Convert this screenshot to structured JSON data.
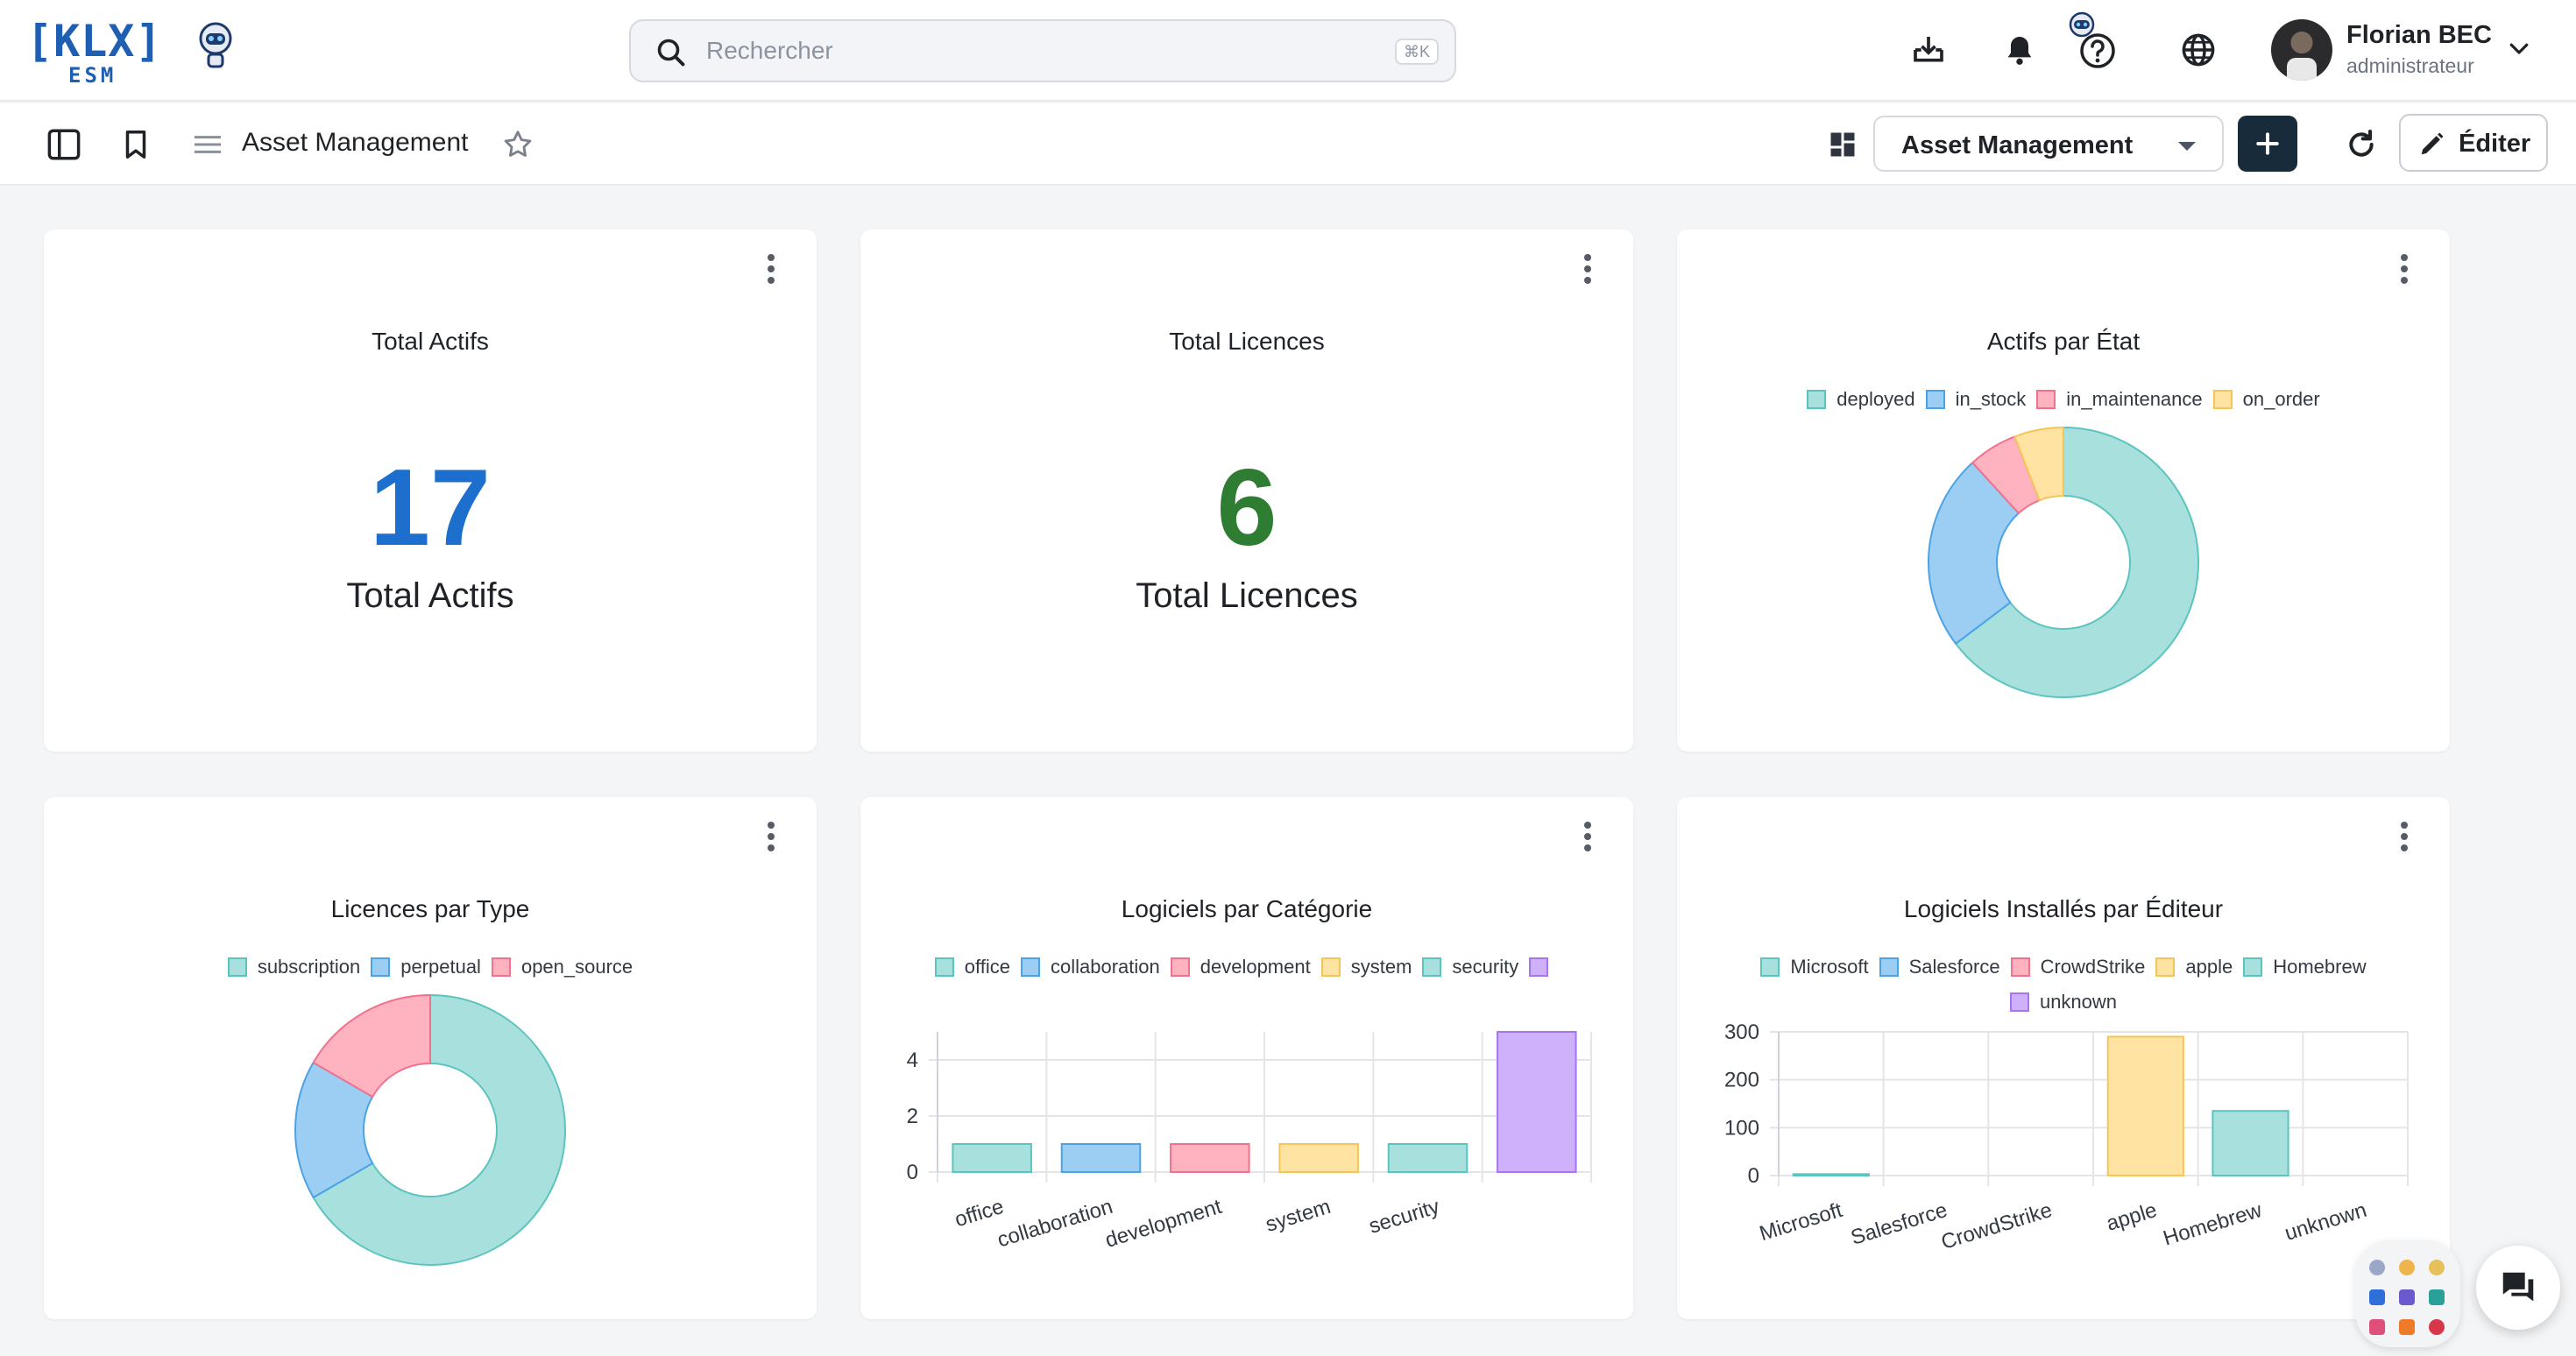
{
  "header": {
    "logo_text": "[KLX]",
    "logo_sub": "ESM",
    "search_placeholder": "Rechercher",
    "search_shortcut": "⌘K",
    "user": {
      "name": "Florian BEC",
      "role": "administrateur"
    }
  },
  "toolbar": {
    "title": "Asset Management",
    "dashboard_selected": "Asset Management",
    "edit_label": "Éditer"
  },
  "widgets": {
    "total_actifs": {
      "title": "Total Actifs",
      "value": "17",
      "label": "Total Actifs",
      "color": "#1c6fcc"
    },
    "total_licences": {
      "title": "Total Licences",
      "value": "6",
      "label": "Total Licences",
      "color": "#2e7d32"
    },
    "actifs_par_etat": {
      "title": "Actifs par État"
    },
    "licences_par_type": {
      "title": "Licences par Type"
    },
    "logiciels_par_categorie": {
      "title": "Logiciels par Catégorie"
    },
    "logiciels_par_editeur": {
      "title": "Logiciels Installés par Éditeur"
    }
  },
  "colors": {
    "teal": "#a8e0dd",
    "teal_border": "#5cc4bf",
    "blue": "#9ccdf2",
    "blue_border": "#4aa3e6",
    "pink": "#ffb3c1",
    "pink_border": "#f2718b",
    "yellow": "#ffe3a3",
    "yellow_border": "#f5c558",
    "purple": "#cfb0fb",
    "purple_border": "#a875f0"
  },
  "chart_data": [
    {
      "id": "actifs_par_etat",
      "type": "pie",
      "title": "Actifs par État",
      "labels": [
        "deployed",
        "in_stock",
        "in_maintenance",
        "on_order"
      ],
      "values": [
        11,
        4,
        1,
        1
      ],
      "legend": "top"
    },
    {
      "id": "licences_par_type",
      "type": "pie",
      "title": "Licences par Type",
      "labels": [
        "subscription",
        "perpetual",
        "open_source"
      ],
      "values": [
        4,
        1,
        1
      ],
      "legend": "top"
    },
    {
      "id": "logiciels_par_categorie",
      "type": "bar",
      "title": "Logiciels par Catégorie",
      "categories": [
        "office",
        "collaboration",
        "development",
        "system",
        "security",
        ""
      ],
      "values": [
        1,
        1,
        1,
        1,
        1,
        5
      ],
      "legend_labels": [
        "office",
        "collaboration",
        "development",
        "system",
        "security",
        ""
      ],
      "yticks": [
        "0",
        "2",
        "4"
      ],
      "ylim": [
        0,
        5
      ],
      "grid": true,
      "legend": "top"
    },
    {
      "id": "logiciels_par_editeur",
      "type": "bar",
      "title": "Logiciels Installés par Éditeur",
      "categories": [
        "Microsoft",
        "Salesforce",
        "CrowdStrike",
        "apple",
        "Homebrew",
        "unknown"
      ],
      "values": [
        3,
        0,
        0,
        290,
        135,
        0
      ],
      "legend_labels": [
        "Microsoft",
        "Salesforce",
        "CrowdStrike",
        "apple",
        "Homebrew",
        "unknown"
      ],
      "yticks": [
        "0",
        "100",
        "200",
        "300"
      ],
      "ylim": [
        0,
        300
      ],
      "grid": true,
      "legend": "top"
    }
  ]
}
